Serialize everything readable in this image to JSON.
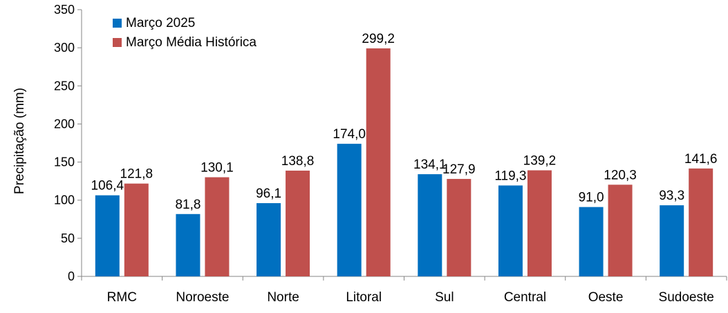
{
  "chart_data": {
    "type": "bar",
    "categories": [
      "RMC",
      "Noroeste",
      "Norte",
      "Litoral",
      "Sul",
      "Central",
      "Oeste",
      "Sudoeste"
    ],
    "series": [
      {
        "name": "Março 2025",
        "color": "#0070C0",
        "values": [
          106.4,
          81.8,
          96.1,
          174.0,
          134.1,
          119.3,
          91.0,
          93.3
        ],
        "labels": [
          "106,4",
          "81,8",
          "96,1",
          "174,0",
          "134,1",
          "119,3",
          "91,0",
          "93,3"
        ]
      },
      {
        "name": "Março Média Histórica",
        "color": "#C0504D",
        "values": [
          121.8,
          130.1,
          138.8,
          299.2,
          127.9,
          139.2,
          120.3,
          141.6
        ],
        "labels": [
          "121,8",
          "130,1",
          "138,8",
          "299,2",
          "127,9",
          "139,2",
          "120,3",
          "141,6"
        ]
      }
    ],
    "title": "",
    "xlabel": "",
    "ylabel": "Precipitação (mm)",
    "ylim": [
      0,
      350
    ],
    "yticks": [
      0,
      50,
      100,
      150,
      200,
      250,
      300,
      350
    ],
    "grid": false,
    "legend_position": "top-left"
  }
}
